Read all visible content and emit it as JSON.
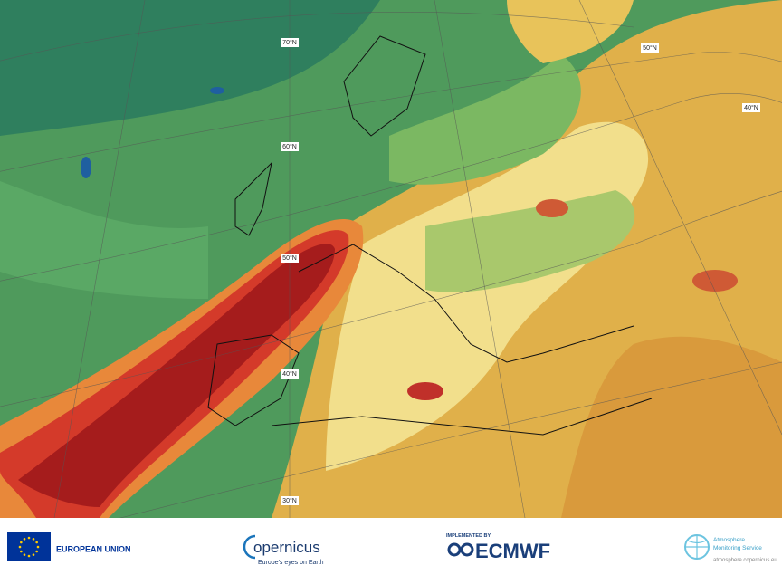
{
  "map": {
    "latitude_labels": [
      "70°N",
      "60°N",
      "50°N",
      "40°N",
      "30°N",
      "50°N",
      "40°N"
    ]
  },
  "footer": {
    "eu": "EUROPEAN UNION",
    "copernicus": "opernicus",
    "copernicus_tagline": "Europe's eyes on Earth",
    "ecmwf_prefix": "IMPLEMENTED BY",
    "ecmwf": "ECMWF",
    "cams_line1": "Atmosphere",
    "cams_line2": "Monitoring Service",
    "cams_url": "atmosphere.copernicus.eu"
  }
}
